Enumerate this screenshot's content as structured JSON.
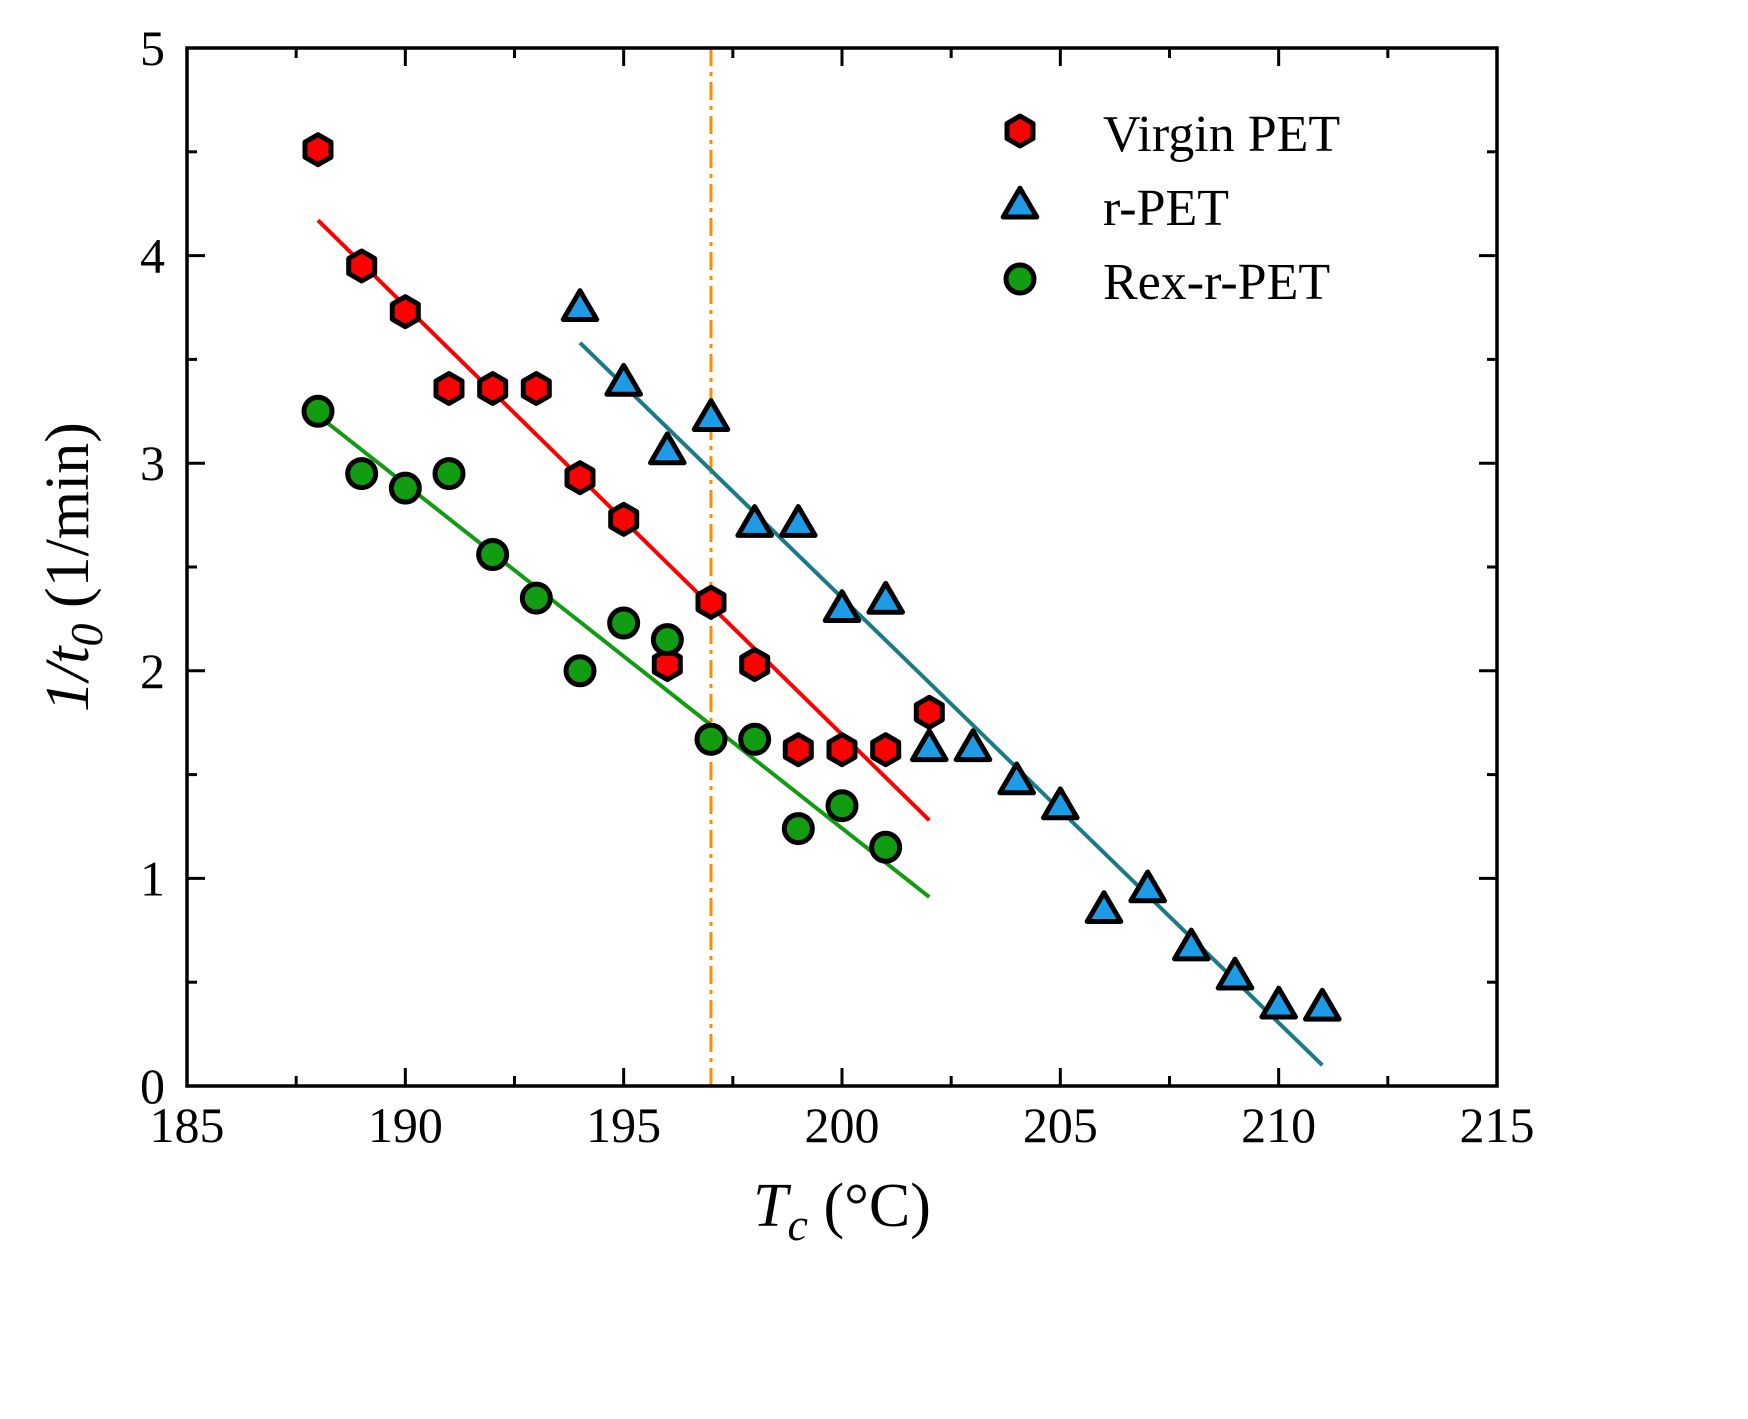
{
  "chart_data": {
    "type": "scatter",
    "title": "",
    "xlabel": {
      "main": "T",
      "sub": "c",
      "unit": " (°C)"
    },
    "ylabel": {
      "main": "1/t",
      "sub": "0",
      "unit": " (1/min)"
    },
    "xlim": [
      185,
      215
    ],
    "ylim": [
      0,
      5
    ],
    "xticks": [
      185,
      190,
      195,
      200,
      205,
      210,
      215
    ],
    "yticks": [
      0,
      1,
      2,
      3,
      4,
      5
    ],
    "xminor_step": 2.5,
    "yminor_step": 0.5,
    "grid": false,
    "legend_position": "top-right",
    "reference_line": {
      "x": 197,
      "color": "#ff8c00",
      "style": "dash-dot"
    },
    "series": [
      {
        "name": "Virgin PET",
        "marker": "hexagon",
        "color": "#ff0000",
        "x": [
          188,
          189,
          190,
          191,
          192,
          193,
          194,
          195,
          196,
          197,
          198,
          199,
          200,
          201,
          202
        ],
        "y": [
          4.51,
          3.95,
          3.73,
          3.36,
          3.36,
          3.36,
          2.93,
          2.73,
          2.03,
          2.33,
          2.03,
          1.62,
          1.62,
          1.62,
          1.8
        ],
        "fit": {
          "x": [
            188,
            202
          ],
          "y": [
            4.17,
            1.28
          ],
          "color": "#ff0000"
        }
      },
      {
        "name": "r-PET",
        "marker": "triangle",
        "color": "#1e9be6",
        "x": [
          194,
          195,
          196,
          197,
          198,
          199,
          200,
          201,
          202,
          203,
          204,
          205,
          206,
          207,
          208,
          209,
          210,
          211
        ],
        "y": [
          3.75,
          3.39,
          3.06,
          3.22,
          2.71,
          2.71,
          2.3,
          2.34,
          1.63,
          1.63,
          1.47,
          1.35,
          0.85,
          0.95,
          0.67,
          0.53,
          0.39,
          0.38
        ],
        "fit": {
          "x": [
            194,
            211
          ],
          "y": [
            3.58,
            0.1
          ],
          "color": "#1a7a85"
        }
      },
      {
        "name": "Rex-r-PET",
        "marker": "circle",
        "color": "#119c11",
        "x": [
          188,
          189,
          190,
          191,
          192,
          193,
          194,
          195,
          196,
          197,
          198,
          199,
          200,
          201
        ],
        "y": [
          3.25,
          2.95,
          2.88,
          2.95,
          2.56,
          2.35,
          2.0,
          2.23,
          2.15,
          1.67,
          1.67,
          1.24,
          1.35,
          1.15
        ],
        "fit": {
          "x": [
            188,
            202
          ],
          "y": [
            3.23,
            0.91
          ],
          "color": "#119c11"
        }
      }
    ]
  }
}
